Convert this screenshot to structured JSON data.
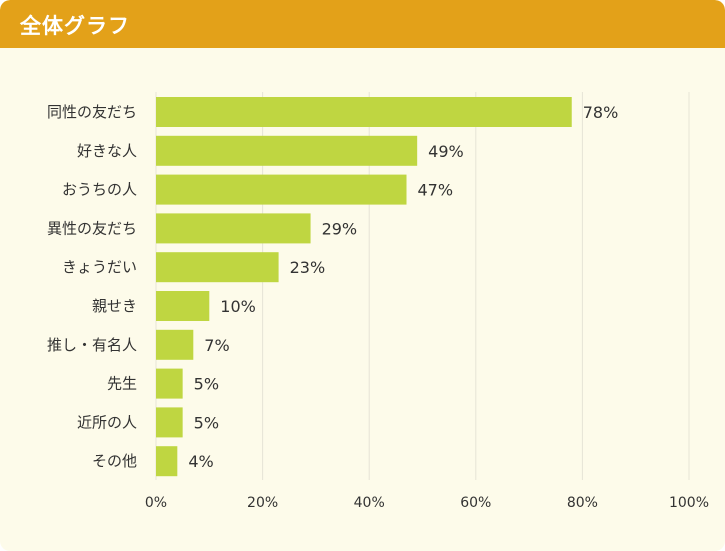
{
  "header": {
    "title": "全体グラフ"
  },
  "colors": {
    "bar": "#bfd641",
    "header": "#e3a119",
    "background": "#fdfbea",
    "grid": "#e6e4d6"
  },
  "chart_data": {
    "type": "bar",
    "orientation": "horizontal",
    "title": "全体グラフ",
    "categories": [
      "同性の友だち",
      "好きな人",
      "おうちの人",
      "異性の友だち",
      "きょうだい",
      "親せき",
      "推し・有名人",
      "先生",
      "近所の人",
      "その他"
    ],
    "values": [
      78,
      49,
      47,
      29,
      23,
      10,
      7,
      5,
      5,
      4
    ],
    "value_labels": [
      "78%",
      "49%",
      "47%",
      "29%",
      "23%",
      "10%",
      "7%",
      "5%",
      "5%",
      "4%"
    ],
    "xlim": [
      0,
      100
    ],
    "xticks": [
      0,
      20,
      40,
      60,
      80,
      100
    ],
    "xtick_labels": [
      "0%",
      "20%",
      "40%",
      "60%",
      "80%",
      "100%"
    ],
    "xlabel": "",
    "ylabel": "",
    "grid": true
  }
}
